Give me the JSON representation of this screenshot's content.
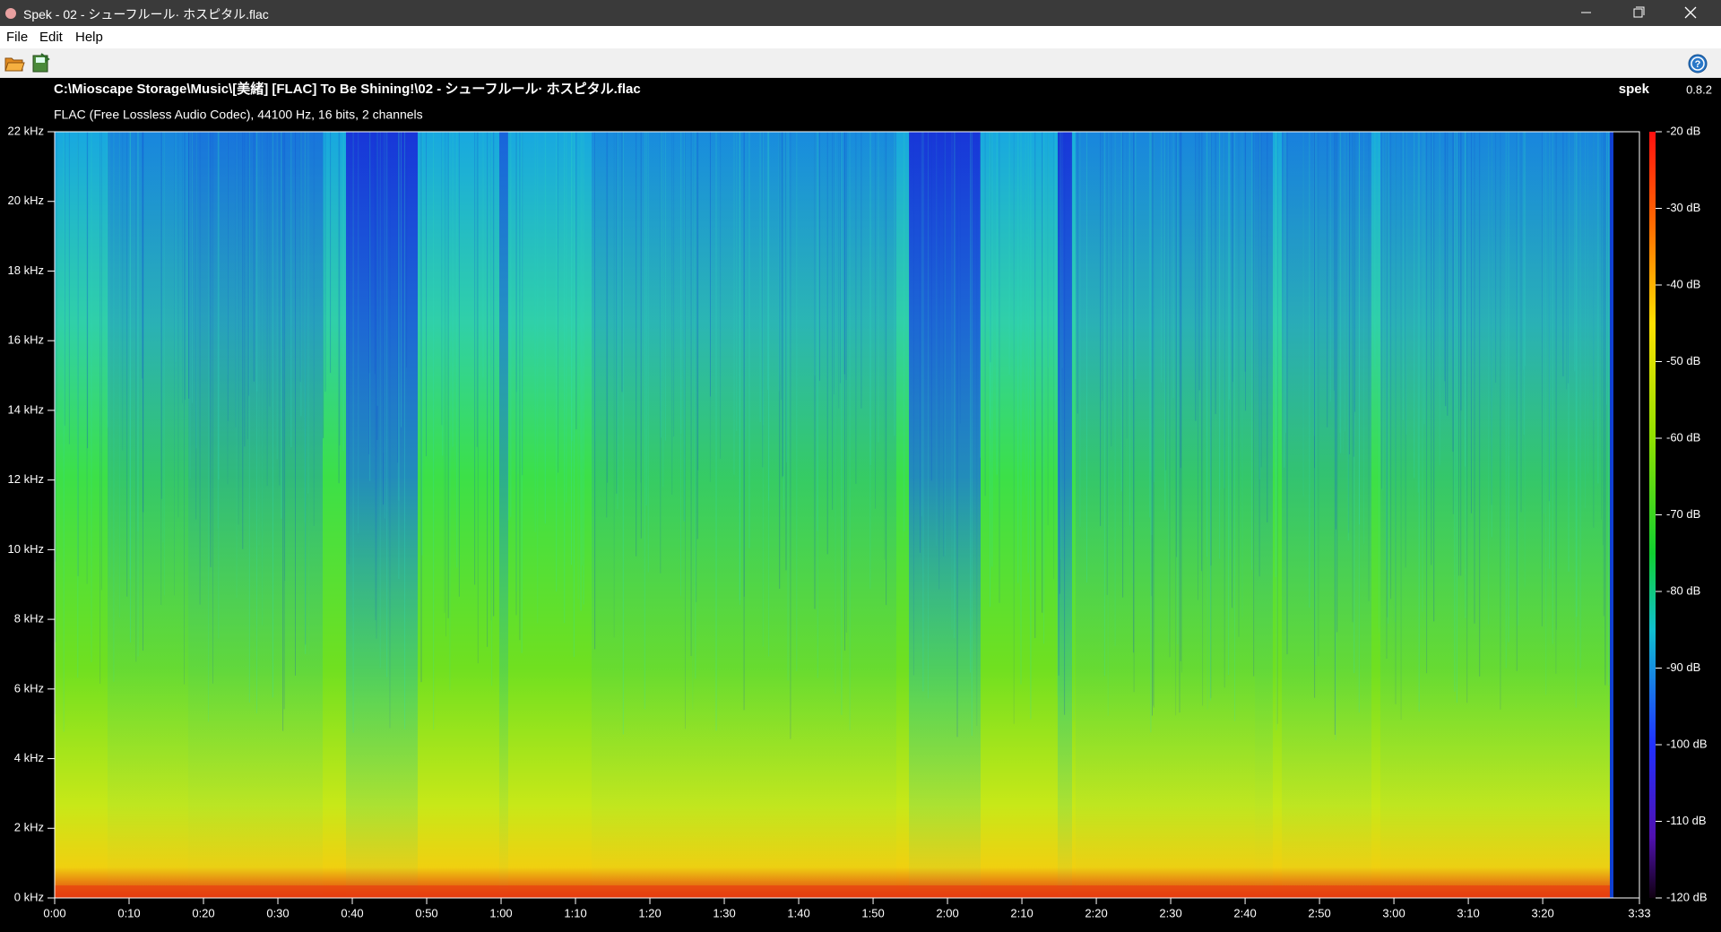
{
  "window": {
    "title": "Spek - 02 - シューフルール· ホスピタル.flac"
  },
  "menu": [
    "File",
    "Edit",
    "Help"
  ],
  "header": {
    "path": "C:\\Mioscape Storage\\Music\\[美緒] [FLAC] To Be Shining!\\02 - シューフルール· ホスピタル.flac",
    "info": "FLAC (Free Lossless Audio Codec), 44100 Hz, 16 bits, 2 channels",
    "app": "spek",
    "version": "0.8.2"
  },
  "frequency_ticks": [
    "0 kHz",
    "2 kHz",
    "4 kHz",
    "6 kHz",
    "8 kHz",
    "10 kHz",
    "12 kHz",
    "14 kHz",
    "16 kHz",
    "18 kHz",
    "20 kHz",
    "22 kHz"
  ],
  "time_ticks": [
    "0:00",
    "0:10",
    "0:20",
    "0:30",
    "0:40",
    "0:50",
    "1:00",
    "1:10",
    "1:20",
    "1:30",
    "1:40",
    "1:50",
    "2:00",
    "2:10",
    "2:20",
    "2:30",
    "2:40",
    "2:50",
    "3:00",
    "3:10",
    "3:20",
    "3:33"
  ],
  "db_ticks": [
    "-20 dB",
    "-30 dB",
    "-40 dB",
    "-50 dB",
    "-60 dB",
    "-70 dB",
    "-80 dB",
    "-90 dB",
    "-100 dB",
    "-110 dB",
    "-120 dB"
  ]
}
